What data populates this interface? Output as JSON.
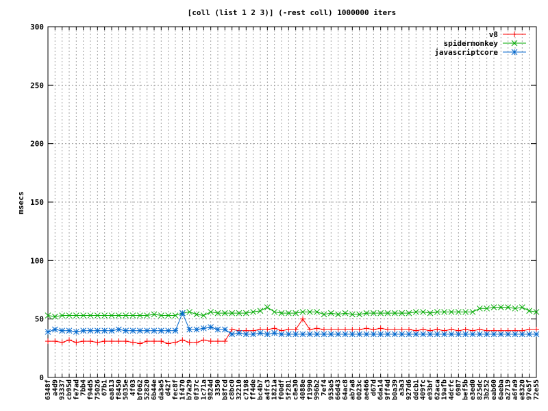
{
  "chart_data": {
    "type": "line",
    "title": "[coll (list 1 2 3)] (-rest coll) 1000000 iters",
    "xlabel": "",
    "ylabel": "msecs",
    "ylim": [
      0,
      300
    ],
    "yticks": [
      0,
      50,
      100,
      150,
      200,
      250,
      300
    ],
    "grid": true,
    "legend": "top-right",
    "categories": [
      "6348f",
      "a4d9",
      "93337",
      "cb95d",
      "fe7ad",
      "7bb4",
      "f94d5",
      "75026",
      "67b1",
      "ea813",
      "f8450",
      "5035e",
      "4f03",
      "bf062",
      "52820",
      "6b44e",
      "da3e5",
      "d42f",
      "fec8f",
      "1f470",
      "b7a29",
      "0f37c",
      "1c71a",
      "9824d",
      "3350",
      "b8fcd",
      "c8bc0",
      "32210",
      "c7198",
      "ff4de",
      "bc4b7",
      "a4fc3",
      "1821a",
      "f00df",
      "5f281",
      "c8e30",
      "4088e",
      "f1990",
      "996b2",
      "7ef4",
      "953e5",
      "66d43",
      "64ac8",
      "ab7a8",
      "0023c",
      "ae466",
      "d67d",
      "6da14",
      "9ff4d",
      "b0a39",
      "a3a3",
      "927d6",
      "ddcb1",
      "409fc",
      "e93bf",
      "62aca",
      "19afb",
      "4dcfc",
      "6987",
      "bef5b",
      "e3ed0",
      "825dc",
      "3b252",
      "eab60",
      "6aeba",
      "a2719",
      "a6fa9",
      "e8320",
      "97e5f",
      "72e55"
    ],
    "series": [
      {
        "name": "v8",
        "color": "#ff0000",
        "marker": "plus",
        "values": [
          31,
          31,
          30,
          32,
          30,
          31,
          31,
          30,
          31,
          31,
          31,
          31,
          30,
          29,
          31,
          31,
          31,
          29,
          30,
          32,
          30,
          30,
          32,
          31,
          31,
          31,
          41,
          40,
          40,
          40,
          41,
          41,
          42,
          40,
          41,
          41,
          50,
          41,
          42,
          41,
          41,
          41,
          41,
          41,
          41,
          42,
          41,
          42,
          41,
          41,
          41,
          41,
          40,
          41,
          40,
          41,
          40,
          41,
          40,
          41,
          40,
          41,
          40,
          40,
          40,
          40,
          40,
          40,
          41,
          41
        ]
      },
      {
        "name": "spidermonkey",
        "color": "#00aa00",
        "marker": "x",
        "values": [
          53,
          52,
          53,
          53,
          53,
          53,
          53,
          53,
          53,
          53,
          53,
          53,
          53,
          53,
          53,
          54,
          53,
          53,
          53,
          55,
          56,
          54,
          53,
          56,
          55,
          55,
          55,
          55,
          55,
          56,
          57,
          60,
          56,
          55,
          55,
          55,
          56,
          56,
          56,
          54,
          55,
          54,
          55,
          54,
          54,
          55,
          55,
          55,
          55,
          55,
          55,
          55,
          56,
          56,
          55,
          56,
          56,
          56,
          56,
          56,
          56,
          59,
          59,
          60,
          60,
          60,
          59,
          60,
          57,
          56
        ]
      },
      {
        "name": "javascriptcore",
        "color": "#0066cc",
        "marker": "star",
        "values": [
          39,
          41,
          40,
          40,
          39,
          40,
          40,
          40,
          40,
          40,
          41,
          40,
          40,
          40,
          40,
          40,
          40,
          40,
          40,
          55,
          41,
          41,
          42,
          43,
          41,
          41,
          37,
          38,
          37,
          37,
          38,
          37,
          38,
          37,
          37,
          37,
          37,
          37,
          37,
          37,
          37,
          37,
          37,
          37,
          37,
          37,
          37,
          37,
          37,
          37,
          37,
          37,
          37,
          37,
          37,
          37,
          37,
          37,
          37,
          37,
          37,
          37,
          37,
          37,
          37,
          37,
          37,
          37,
          37,
          37
        ]
      }
    ]
  }
}
